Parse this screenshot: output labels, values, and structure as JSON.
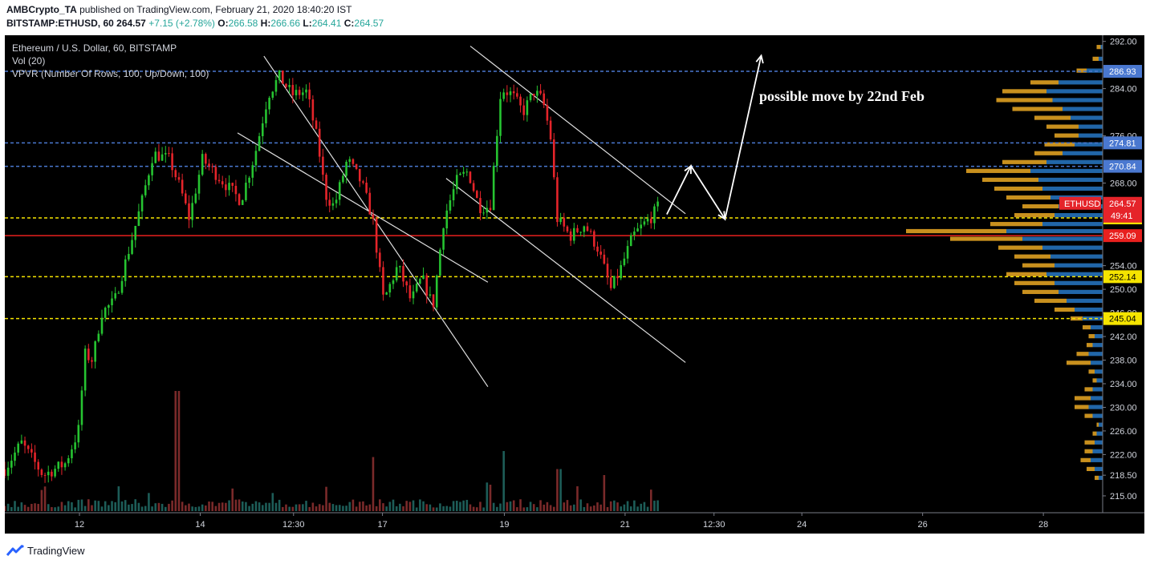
{
  "header": {
    "author": "AMBCrypto_TA",
    "published_text": "published on TradingView.com, February 21, 2020 18:40:20 IST",
    "symbol_full": "BITSTAMP:ETHUSD, 60",
    "last": "264.57",
    "change": "+7.15 (+2.78%)",
    "open_label": "O:",
    "open": "266.58",
    "high_label": "H:",
    "high": "266.66",
    "low_label": "L:",
    "low": "264.41",
    "close_label": "C:",
    "close": "264.57"
  },
  "legend": {
    "title": "Ethereum / U.S. Dollar, 60, BITSTAMP",
    "vol": "Vol (20)",
    "vpvr": "VPVR (Number Of Rows, 100, Up/Down, 100)"
  },
  "annotation": {
    "text": "possible move by 22nd Feb"
  },
  "footer": {
    "brand": "TradingView"
  },
  "colors": {
    "background": "#000000",
    "up_candle": "#26c431",
    "down_candle": "#e5242a",
    "resistance_line": "#4a78d0",
    "support_line": "#f5e400",
    "pivot_line": "#e8201e",
    "vp_up": "#2166a8",
    "vp_down": "#c8901e",
    "axis_text": "#d1d4dc"
  },
  "chart_data": {
    "type": "candlestick",
    "ylim": [
      213.5,
      292.5
    ],
    "x_ticks": [
      {
        "label": "12",
        "frac": 0.068
      },
      {
        "label": "14",
        "frac": 0.178
      },
      {
        "label": "12:30",
        "frac": 0.263
      },
      {
        "label": "17",
        "frac": 0.344
      },
      {
        "label": "19",
        "frac": 0.455
      },
      {
        "label": "21",
        "frac": 0.565
      },
      {
        "label": "12:30",
        "frac": 0.646
      },
      {
        "label": "24",
        "frac": 0.726
      },
      {
        "label": "26",
        "frac": 0.836
      },
      {
        "label": "28",
        "frac": 0.946
      }
    ],
    "y_ticks": [
      "292.00",
      "284.00",
      "276.00",
      "268.00",
      "254.00",
      "250.00",
      "246.00",
      "242.00",
      "238.00",
      "234.00",
      "230.00",
      "226.00",
      "222.00",
      "218.50",
      "215.00"
    ],
    "horizontal_lines": [
      {
        "kind": "resistance",
        "value": 286.93,
        "label": "286.93"
      },
      {
        "kind": "resistance",
        "value": 274.81,
        "label": "274.81"
      },
      {
        "kind": "resistance",
        "value": 270.84,
        "label": "270.84"
      },
      {
        "kind": "support",
        "value": 262.1,
        "label": "262.10"
      },
      {
        "kind": "pivot",
        "value": 259.09,
        "label": "259.09"
      },
      {
        "kind": "support",
        "value": 252.14,
        "label": "252.14"
      },
      {
        "kind": "support",
        "value": 245.04,
        "label": "245.04"
      }
    ],
    "price_tag": {
      "symbol": "ETHUSD",
      "value": "264.57",
      "countdown": "49:41"
    },
    "anchors": [
      {
        "t": 0.0,
        "p": 219.5
      },
      {
        "t": 0.015,
        "p": 224.0
      },
      {
        "t": 0.035,
        "p": 218.5
      },
      {
        "t": 0.055,
        "p": 220.5
      },
      {
        "t": 0.067,
        "p": 226.0
      },
      {
        "t": 0.073,
        "p": 239.0
      },
      {
        "t": 0.08,
        "p": 238.0
      },
      {
        "t": 0.088,
        "p": 246.0
      },
      {
        "t": 0.1,
        "p": 248.0
      },
      {
        "t": 0.115,
        "p": 258.0
      },
      {
        "t": 0.125,
        "p": 265.0
      },
      {
        "t": 0.135,
        "p": 273.0
      },
      {
        "t": 0.15,
        "p": 272.0
      },
      {
        "t": 0.16,
        "p": 267.0
      },
      {
        "t": 0.168,
        "p": 262.0
      },
      {
        "t": 0.18,
        "p": 272.0
      },
      {
        "t": 0.2,
        "p": 268.0
      },
      {
        "t": 0.215,
        "p": 265.0
      },
      {
        "t": 0.228,
        "p": 273.0
      },
      {
        "t": 0.24,
        "p": 283.0
      },
      {
        "t": 0.25,
        "p": 286.0
      },
      {
        "t": 0.262,
        "p": 283.0
      },
      {
        "t": 0.275,
        "p": 283.5
      },
      {
        "t": 0.285,
        "p": 275.0
      },
      {
        "t": 0.292,
        "p": 266.0
      },
      {
        "t": 0.3,
        "p": 264.0
      },
      {
        "t": 0.312,
        "p": 272.0
      },
      {
        "t": 0.325,
        "p": 268.0
      },
      {
        "t": 0.335,
        "p": 262.0
      },
      {
        "t": 0.345,
        "p": 248.0
      },
      {
        "t": 0.358,
        "p": 254.0
      },
      {
        "t": 0.37,
        "p": 248.0
      },
      {
        "t": 0.38,
        "p": 252.0
      },
      {
        "t": 0.39,
        "p": 247.0
      },
      {
        "t": 0.4,
        "p": 262.0
      },
      {
        "t": 0.412,
        "p": 268.5
      },
      {
        "t": 0.422,
        "p": 270.0
      },
      {
        "t": 0.432,
        "p": 264.0
      },
      {
        "t": 0.442,
        "p": 264.0
      },
      {
        "t": 0.452,
        "p": 284.0
      },
      {
        "t": 0.462,
        "p": 283.0
      },
      {
        "t": 0.472,
        "p": 280.0
      },
      {
        "t": 0.482,
        "p": 283.5
      },
      {
        "t": 0.49,
        "p": 282.0
      },
      {
        "t": 0.497,
        "p": 276.0
      },
      {
        "t": 0.503,
        "p": 262.0
      },
      {
        "t": 0.515,
        "p": 259.0
      },
      {
        "t": 0.528,
        "p": 261.0
      },
      {
        "t": 0.54,
        "p": 257.0
      },
      {
        "t": 0.552,
        "p": 250.0
      },
      {
        "t": 0.56,
        "p": 253.0
      },
      {
        "t": 0.572,
        "p": 259.0
      },
      {
        "t": 0.582,
        "p": 261.0
      },
      {
        "t": 0.59,
        "p": 262.5
      },
      {
        "t": 0.597,
        "p": 264.57
      }
    ],
    "volume_spikes": [
      {
        "t": 0.157,
        "v": 1.0
      },
      {
        "t": 0.335,
        "v": 0.45
      },
      {
        "t": 0.455,
        "v": 0.5
      },
      {
        "t": 0.505,
        "v": 0.35
      },
      {
        "t": 0.545,
        "v": 0.3
      }
    ],
    "volume_profile": [
      {
        "price": 291.0,
        "up": 0.01,
        "down": 0.02
      },
      {
        "price": 289.0,
        "up": 0.02,
        "down": 0.03
      },
      {
        "price": 287.0,
        "up": 0.08,
        "down": 0.05
      },
      {
        "price": 285.0,
        "up": 0.22,
        "down": 0.14
      },
      {
        "price": 283.5,
        "up": 0.28,
        "down": 0.22
      },
      {
        "price": 282.0,
        "up": 0.25,
        "down": 0.28
      },
      {
        "price": 280.5,
        "up": 0.2,
        "down": 0.25
      },
      {
        "price": 279.0,
        "up": 0.16,
        "down": 0.18
      },
      {
        "price": 277.5,
        "up": 0.12,
        "down": 0.16
      },
      {
        "price": 276.0,
        "up": 0.12,
        "down": 0.12
      },
      {
        "price": 274.5,
        "up": 0.14,
        "down": 0.15
      },
      {
        "price": 273.0,
        "up": 0.2,
        "down": 0.14
      },
      {
        "price": 271.5,
        "up": 0.28,
        "down": 0.22
      },
      {
        "price": 270.0,
        "up": 0.36,
        "down": 0.32
      },
      {
        "price": 268.5,
        "up": 0.32,
        "down": 0.28
      },
      {
        "price": 267.0,
        "up": 0.3,
        "down": 0.24
      },
      {
        "price": 265.5,
        "up": 0.26,
        "down": 0.22
      },
      {
        "price": 264.0,
        "up": 0.22,
        "down": 0.18
      },
      {
        "price": 262.5,
        "up": 0.24,
        "down": 0.2
      },
      {
        "price": 261.0,
        "up": 0.3,
        "down": 0.26
      },
      {
        "price": 259.8,
        "up": 0.48,
        "down": 0.5
      },
      {
        "price": 258.5,
        "up": 0.4,
        "down": 0.36
      },
      {
        "price": 257.0,
        "up": 0.3,
        "down": 0.22
      },
      {
        "price": 255.5,
        "up": 0.26,
        "down": 0.18
      },
      {
        "price": 254.0,
        "up": 0.24,
        "down": 0.16
      },
      {
        "price": 252.5,
        "up": 0.28,
        "down": 0.2
      },
      {
        "price": 251.0,
        "up": 0.24,
        "down": 0.2
      },
      {
        "price": 249.5,
        "up": 0.22,
        "down": 0.18
      },
      {
        "price": 248.0,
        "up": 0.18,
        "down": 0.16
      },
      {
        "price": 246.5,
        "up": 0.14,
        "down": 0.1
      },
      {
        "price": 245.0,
        "up": 0.1,
        "down": 0.06
      },
      {
        "price": 243.5,
        "up": 0.06,
        "down": 0.04
      },
      {
        "price": 242.0,
        "up": 0.04,
        "down": 0.03
      },
      {
        "price": 240.5,
        "up": 0.05,
        "down": 0.03
      },
      {
        "price": 239.0,
        "up": 0.07,
        "down": 0.06
      },
      {
        "price": 237.5,
        "up": 0.06,
        "down": 0.12
      },
      {
        "price": 236.0,
        "up": 0.04,
        "down": 0.03
      },
      {
        "price": 234.5,
        "up": 0.03,
        "down": 0.02
      },
      {
        "price": 233.0,
        "up": 0.05,
        "down": 0.04
      },
      {
        "price": 231.5,
        "up": 0.06,
        "down": 0.08
      },
      {
        "price": 230.0,
        "up": 0.07,
        "down": 0.07
      },
      {
        "price": 228.5,
        "up": 0.05,
        "down": 0.04
      },
      {
        "price": 227.0,
        "up": 0.02,
        "down": 0.01
      },
      {
        "price": 225.5,
        "up": 0.03,
        "down": 0.02
      },
      {
        "price": 224.0,
        "up": 0.04,
        "down": 0.05
      },
      {
        "price": 222.5,
        "up": 0.05,
        "down": 0.04
      },
      {
        "price": 221.0,
        "up": 0.06,
        "down": 0.05
      },
      {
        "price": 219.5,
        "up": 0.04,
        "down": 0.04
      },
      {
        "price": 218.0,
        "up": 0.02,
        "down": 0.02
      }
    ]
  }
}
